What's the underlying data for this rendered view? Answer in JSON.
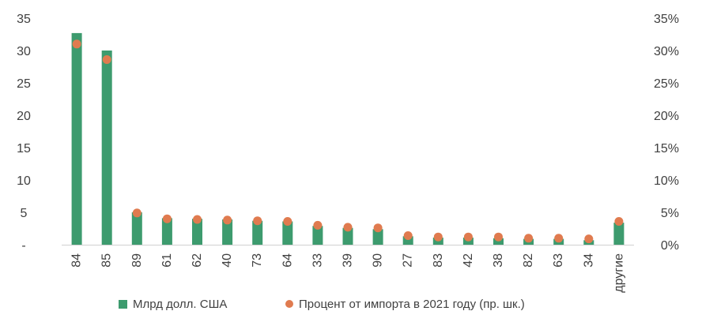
{
  "chart_data": {
    "type": "bar",
    "title": "",
    "xlabel": "",
    "categories": [
      "84",
      "85",
      "89",
      "61",
      "62",
      "40",
      "73",
      "64",
      "33",
      "39",
      "90",
      "27",
      "83",
      "42",
      "38",
      "82",
      "63",
      "34",
      "другие"
    ],
    "y_left": {
      "range": [
        0,
        35
      ],
      "ticks": [
        "-",
        "5",
        "10",
        "15",
        "20",
        "25",
        "30",
        "35"
      ],
      "tick_values": [
        0,
        5,
        10,
        15,
        20,
        25,
        30,
        35
      ]
    },
    "y_right": {
      "range": [
        0,
        35
      ],
      "ticks": [
        "0%",
        "5%",
        "10%",
        "15%",
        "20%",
        "25%",
        "30%",
        "35%"
      ],
      "tick_values": [
        0,
        5,
        10,
        15,
        20,
        25,
        30,
        35
      ]
    },
    "grid": false,
    "legend_position": "bottom",
    "series": [
      {
        "name": "Млрд долл. США",
        "kind": "bar",
        "axis": "left",
        "color": "#3d9b6e",
        "values": [
          32.7,
          30.0,
          5.0,
          4.1,
          4.0,
          3.9,
          3.7,
          3.6,
          2.9,
          2.6,
          2.4,
          1.3,
          1.1,
          1.1,
          1.0,
          0.9,
          0.9,
          0.7,
          3.4
        ]
      },
      {
        "name": "Процент от импорта в 2021 году (пр. шк.)",
        "kind": "scatter",
        "axis": "right",
        "color": "#e07b4f",
        "values": [
          31.0,
          28.6,
          4.9,
          4.0,
          3.9,
          3.8,
          3.7,
          3.6,
          3.0,
          2.7,
          2.6,
          1.4,
          1.2,
          1.2,
          1.2,
          1.0,
          1.0,
          0.9,
          3.6
        ]
      }
    ]
  }
}
